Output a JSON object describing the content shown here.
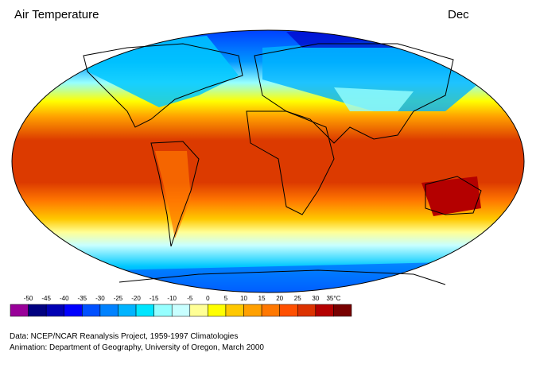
{
  "header": {
    "title": "Air Temperature",
    "month": "Dec"
  },
  "colorbar": {
    "ticks": [
      -50,
      -45,
      -40,
      -35,
      -30,
      -25,
      -20,
      -15,
      -10,
      -5,
      0,
      5,
      10,
      15,
      20,
      25,
      30,
      {
        "value": 35,
        "label": "35°C"
      }
    ],
    "colors": [
      "#990099",
      "#000080",
      "#0000b4",
      "#0000ff",
      "#0050ff",
      "#0082ff",
      "#00b4ff",
      "#00e6ff",
      "#96ffff",
      "#c8ffff",
      "#ffff96",
      "#ffff00",
      "#ffc800",
      "#ffa000",
      "#ff7800",
      "#ff5000",
      "#dc3200",
      "#b40000",
      "#780000"
    ]
  },
  "credits": [
    "Data:  NCEP/NCAR Reanalysis Project, 1959-1997 Climatologies",
    "Animation:  Department of Geography, University of Oregon, March 2000"
  ]
}
